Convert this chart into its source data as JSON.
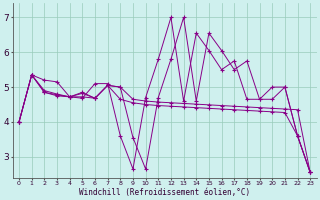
{
  "xlabel": "Windchill (Refroidissement éolien,°C)",
  "bg_color": "#cff0ee",
  "line_color": "#880088",
  "xlim": [
    -0.5,
    23.5
  ],
  "ylim": [
    2.4,
    7.4
  ],
  "yticks": [
    3,
    4,
    5,
    6,
    7
  ],
  "xticks": [
    0,
    1,
    2,
    3,
    4,
    5,
    6,
    7,
    8,
    9,
    10,
    11,
    12,
    13,
    14,
    15,
    16,
    17,
    18,
    19,
    20,
    21,
    22,
    23
  ],
  "series": [
    [
      4.0,
      5.35,
      4.9,
      4.8,
      4.72,
      4.85,
      4.68,
      5.05,
      5.0,
      3.55,
      2.65,
      4.7,
      5.8,
      7.0,
      4.6,
      6.55,
      6.05,
      5.5,
      5.75,
      4.65,
      4.65,
      5.0,
      3.6,
      2.55
    ],
    [
      4.0,
      5.35,
      4.85,
      4.78,
      4.72,
      4.72,
      4.68,
      5.05,
      4.65,
      4.55,
      4.5,
      4.47,
      4.45,
      4.43,
      4.41,
      4.39,
      4.37,
      4.35,
      4.33,
      4.31,
      4.29,
      4.27,
      3.6,
      2.55
    ],
    [
      4.0,
      5.35,
      4.85,
      4.75,
      4.72,
      4.82,
      4.68,
      5.05,
      5.0,
      4.65,
      4.6,
      4.57,
      4.55,
      4.53,
      4.51,
      4.49,
      4.47,
      4.45,
      4.43,
      4.41,
      4.39,
      4.37,
      4.35,
      2.55
    ],
    [
      4.0,
      5.35,
      5.2,
      5.15,
      4.72,
      4.68,
      5.1,
      5.1,
      3.6,
      2.65,
      4.7,
      5.8,
      7.0,
      4.6,
      6.55,
      6.05,
      5.5,
      5.75,
      4.65,
      4.65,
      5.0,
      5.0,
      3.6,
      2.55
    ]
  ]
}
